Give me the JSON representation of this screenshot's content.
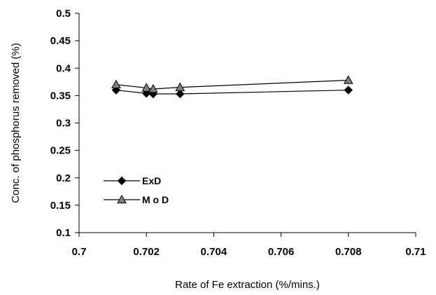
{
  "chart_data": {
    "type": "line",
    "title": "",
    "xlabel": "Rate of Fe extraction (%/mins.)",
    "ylabel": "Conc. of phosphorus removed (%)",
    "xlim": [
      0.7,
      0.71
    ],
    "ylim": [
      0.1,
      0.5
    ],
    "x_ticks": [
      "0.7",
      "0.702",
      "0.704",
      "0.706",
      "0.708",
      "0.71"
    ],
    "y_ticks": [
      "0.1",
      "0.15",
      "0.2",
      "0.25",
      "0.3",
      "0.35",
      "0.4",
      "0.45",
      "0.5"
    ],
    "grid": false,
    "legend_position": "left",
    "series": [
      {
        "name": "ExD",
        "marker": "diamond",
        "color": "#000000",
        "x": [
          0.7011,
          0.702,
          0.7022,
          0.703,
          0.708
        ],
        "y": [
          0.36,
          0.354,
          0.353,
          0.353,
          0.36
        ]
      },
      {
        "name": "M o D",
        "marker": "triangle",
        "color": "#808080",
        "x": [
          0.7011,
          0.702,
          0.7022,
          0.703,
          0.708
        ],
        "y": [
          0.37,
          0.364,
          0.362,
          0.365,
          0.378
        ]
      }
    ]
  }
}
